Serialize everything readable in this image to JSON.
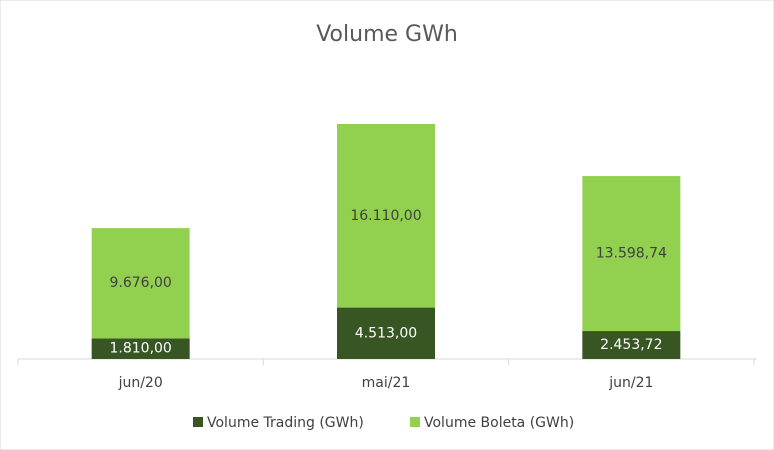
{
  "chart_data": {
    "type": "stacked-bar",
    "title": "Volume GWh",
    "categories": [
      "jun/20",
      "mai/21",
      "jun/21"
    ],
    "series": [
      {
        "name": "Volume Trading (GWh)",
        "color": "#375623",
        "values": [
          1810,
          4513,
          2453.72
        ],
        "value_labels": [
          "1.810,00",
          "4.513,00",
          "2.453,72"
        ],
        "label_color": "#ffffff"
      },
      {
        "name": "Volume Boleta (GWh)",
        "color": "#92d050",
        "values": [
          9676,
          16110,
          13598.74
        ],
        "value_labels": [
          "9.676,00",
          "16.110,00",
          "13.598,74"
        ],
        "label_color": "#404040"
      }
    ]
  }
}
